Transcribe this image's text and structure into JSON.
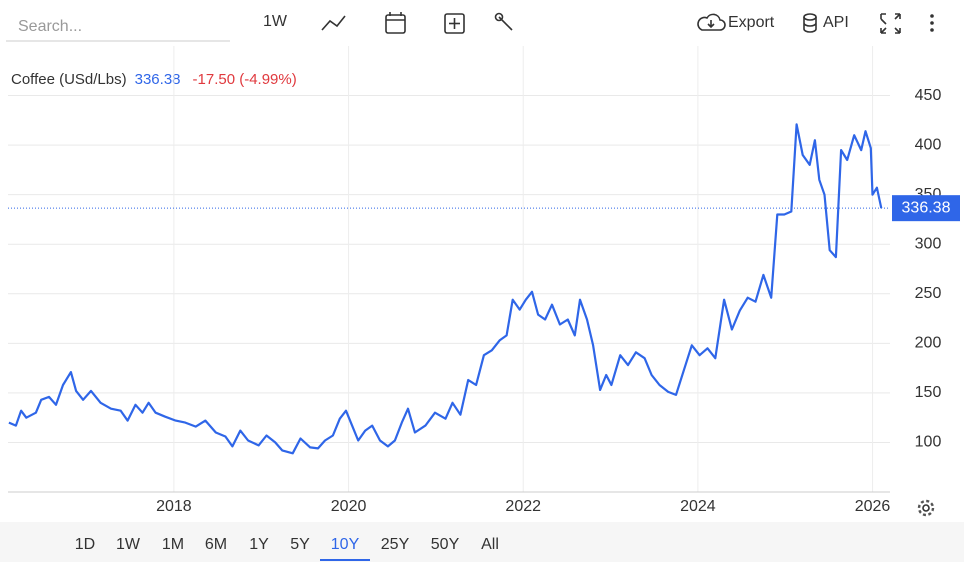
{
  "toolbar": {
    "search_placeholder": "Search...",
    "interval": "1W",
    "export": "Export",
    "api": "API"
  },
  "range_buttons": [
    "1D",
    "1W",
    "1M",
    "6M",
    "1Y",
    "5Y",
    "10Y",
    "25Y",
    "50Y",
    "All"
  ],
  "active_range": "10Y",
  "chart_data": {
    "type": "line",
    "change_label": "-17.50 (-4.99%)",
    "change_color": "#e0393e",
    "series": [
      {
        "name": "Coffee (USd/Lbs)",
        "color": "#2f66e8",
        "x": [
          2016.11,
          2016.19,
          2016.25,
          2016.31,
          2016.42,
          2016.48,
          2016.57,
          2016.65,
          2016.73,
          2016.82,
          2016.88,
          2016.96,
          2017.05,
          2017.16,
          2017.28,
          2017.39,
          2017.47,
          2017.56,
          2017.64,
          2017.71,
          2017.79,
          2017.9,
          2018.02,
          2018.13,
          2018.25,
          2018.36,
          2018.48,
          2018.59,
          2018.67,
          2018.76,
          2018.85,
          2018.97,
          2019.06,
          2019.16,
          2019.24,
          2019.36,
          2019.45,
          2019.56,
          2019.65,
          2019.73,
          2019.82,
          2019.9,
          2019.97,
          2020.04,
          2020.11,
          2020.19,
          2020.27,
          2020.36,
          2020.45,
          2020.53,
          2020.61,
          2020.68,
          2020.76,
          2020.88,
          2020.99,
          2021.11,
          2021.19,
          2021.28,
          2021.37,
          2021.46,
          2021.55,
          2021.64,
          2021.73,
          2021.81,
          2021.88,
          2021.96,
          2022.03,
          2022.1,
          2022.17,
          2022.25,
          2022.33,
          2022.42,
          2022.51,
          2022.59,
          2022.65,
          2022.73,
          2022.8,
          2022.88,
          2022.95,
          2023.01,
          2023.11,
          2023.2,
          2023.29,
          2023.39,
          2023.47,
          2023.56,
          2023.66,
          2023.75,
          2023.84,
          2023.93,
          2024.02,
          2024.11,
          2024.2,
          2024.3,
          2024.39,
          2024.48,
          2024.57,
          2024.66,
          2024.75,
          2024.84,
          2024.91,
          2024.99,
          2025.07,
          2025.13,
          2025.2,
          2025.28,
          2025.34,
          2025.39,
          2025.45,
          2025.51,
          2025.58,
          2025.64,
          2025.71,
          2025.79,
          2025.87,
          2025.92,
          2025.98,
          2026.0,
          2026.05,
          2026.1
        ],
        "values": [
          120,
          117,
          132,
          125,
          130,
          143,
          146,
          138,
          158,
          171,
          152,
          143,
          152,
          140,
          134,
          132,
          122,
          138,
          130,
          140,
          130,
          126,
          122,
          120,
          116,
          122,
          110,
          106,
          96,
          112,
          102,
          97,
          107,
          100,
          92,
          89,
          104,
          95,
          94,
          102,
          107,
          124,
          132,
          117,
          102,
          112,
          117,
          102,
          96,
          102,
          120,
          134,
          110,
          117,
          130,
          124,
          140,
          128,
          163,
          158,
          188,
          193,
          203,
          208,
          244,
          234,
          244,
          252,
          229,
          224,
          239,
          219,
          224,
          208,
          244,
          224,
          198,
          153,
          168,
          158,
          188,
          178,
          191,
          185,
          168,
          158,
          151,
          148,
          173,
          198,
          188,
          195,
          185,
          244,
          214,
          233,
          246,
          242,
          269,
          246,
          330,
          330,
          333,
          421,
          390,
          380,
          405,
          365,
          350,
          294,
          287,
          395,
          385,
          410,
          395,
          414,
          397,
          350,
          357,
          336.38
        ]
      }
    ],
    "xlim": [
      2016.1,
      2026.2
    ],
    "xticks": [
      2018,
      2020,
      2022,
      2024,
      2026
    ],
    "ylim": [
      50,
      500
    ],
    "yticks": [
      100,
      150,
      200,
      250,
      300,
      350,
      400,
      450
    ],
    "grid": true
  }
}
